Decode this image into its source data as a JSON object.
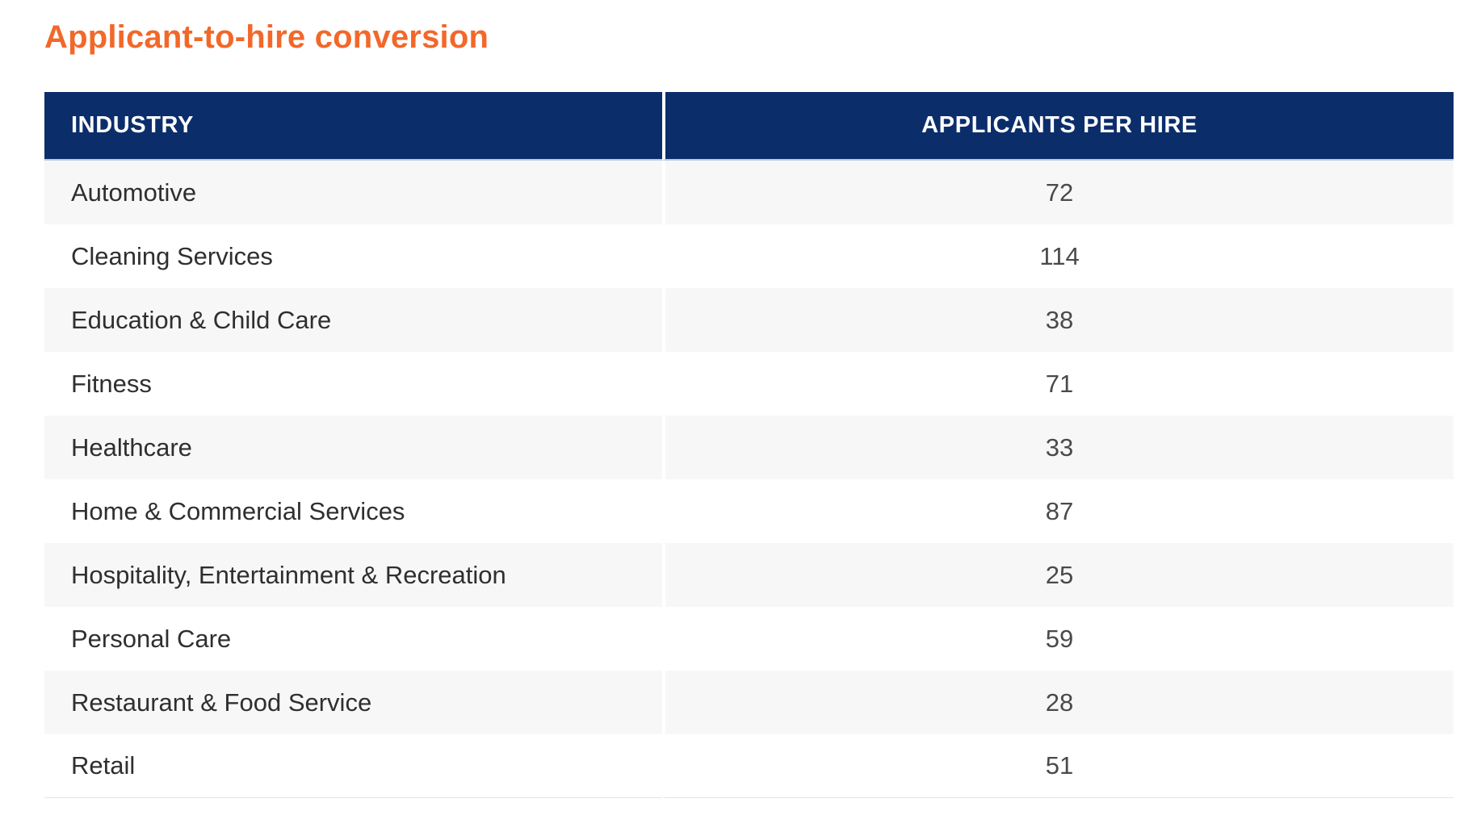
{
  "page": {
    "title": "Applicant-to-hire conversion"
  },
  "colors": {
    "accent_orange": "#F2682A",
    "header_navy": "#0B2E6B",
    "row_stripe_gray": "#F7F7F8",
    "header_text": "#FFFFFF",
    "body_text": "#2F2F2F"
  },
  "table": {
    "columns": [
      {
        "label": "INDUSTRY"
      },
      {
        "label": "APPLICANTS PER HIRE"
      }
    ],
    "rows": [
      {
        "industry": "Automotive",
        "applicants_per_hire": "72"
      },
      {
        "industry": "Cleaning Services",
        "applicants_per_hire": "114"
      },
      {
        "industry": "Education & Child Care",
        "applicants_per_hire": "38"
      },
      {
        "industry": "Fitness",
        "applicants_per_hire": "71"
      },
      {
        "industry": "Healthcare",
        "applicants_per_hire": "33"
      },
      {
        "industry": "Home & Commercial Services",
        "applicants_per_hire": "87"
      },
      {
        "industry": "Hospitality, Entertainment & Recreation",
        "applicants_per_hire": "25"
      },
      {
        "industry": "Personal Care",
        "applicants_per_hire": "59"
      },
      {
        "industry": "Restaurant & Food Service",
        "applicants_per_hire": "28"
      },
      {
        "industry": "Retail",
        "applicants_per_hire": "51"
      }
    ]
  },
  "chart_data": {
    "type": "table",
    "title": "Applicant-to-hire conversion",
    "columns": [
      "INDUSTRY",
      "APPLICANTS PER HIRE"
    ],
    "categories": [
      "Automotive",
      "Cleaning Services",
      "Education & Child Care",
      "Fitness",
      "Healthcare",
      "Home & Commercial Services",
      "Hospitality, Entertainment & Recreation",
      "Personal Care",
      "Restaurant & Food Service",
      "Retail"
    ],
    "values": [
      72,
      114,
      38,
      71,
      33,
      87,
      25,
      59,
      28,
      51
    ]
  }
}
